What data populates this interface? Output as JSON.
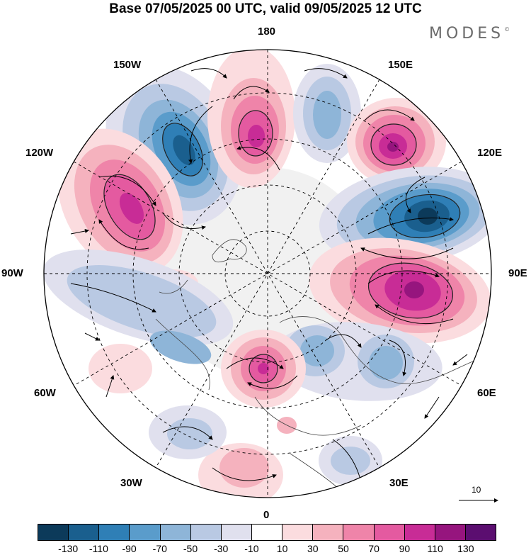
{
  "title": "Base 07/05/2025 00 UTC, valid 09/05/2025 12 UTC",
  "logo": {
    "text": "MODES",
    "mark": "©"
  },
  "longitude_labels": [
    "180",
    "150E",
    "120E",
    "90E",
    "60E",
    "30E",
    "0",
    "30W",
    "60W",
    "90W",
    "120W",
    "150W"
  ],
  "reference_vector": {
    "label": "10"
  },
  "colorbar": {
    "colors": [
      "#0c3a5a",
      "#1a5f8e",
      "#2f7fb6",
      "#5a9ccb",
      "#8eb5d8",
      "#b9c9e3",
      "#e0e0ee",
      "#ffffff",
      "#fbdcdf",
      "#f5b2be",
      "#ef84a9",
      "#e45aa0",
      "#c82c96",
      "#96157e",
      "#5b0e70"
    ],
    "labels": [
      "-130",
      "-110",
      "-90",
      "-70",
      "-50",
      "-30",
      "-10",
      "10",
      "30",
      "50",
      "70",
      "90",
      "110",
      "130"
    ]
  },
  "anomaly_centers": [
    {
      "sign": "negative",
      "level": "-110",
      "region": "150W"
    },
    {
      "sign": "positive",
      "level": "90",
      "region": "180"
    },
    {
      "sign": "negative",
      "level": "-50",
      "region": "165E"
    },
    {
      "sign": "positive",
      "level": "110",
      "region": "140E"
    },
    {
      "sign": "negative",
      "level": "-110",
      "region": "110E"
    },
    {
      "sign": "positive",
      "level": "110",
      "region": "80E"
    },
    {
      "sign": "negative",
      "level": "-50",
      "region": "45E"
    },
    {
      "sign": "positive",
      "level": "90",
      "region": "0"
    },
    {
      "sign": "positive",
      "level": "90",
      "region": "120W"
    },
    {
      "sign": "negative",
      "level": "-50",
      "region": "90W"
    }
  ]
}
